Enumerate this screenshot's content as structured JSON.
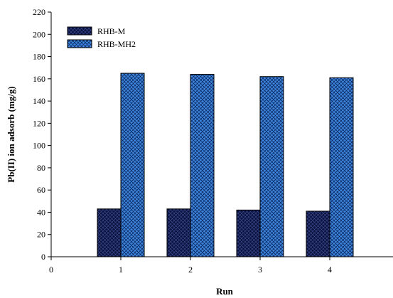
{
  "chart_data": {
    "type": "bar",
    "title": "",
    "xlabel": "Run",
    "ylabel": "Pb(II) ion adsorb (mg/g)",
    "categories": [
      "1",
      "2",
      "3",
      "4"
    ],
    "x_ticks": [
      "0",
      "1",
      "2",
      "3",
      "4"
    ],
    "xlim": [
      0,
      5
    ],
    "ylim": [
      0,
      220
    ],
    "y_ticks": [
      0,
      20,
      40,
      60,
      80,
      100,
      120,
      140,
      160,
      180,
      200,
      220
    ],
    "grid": false,
    "legend_position": "top-left",
    "series": [
      {
        "name": "RHB-M",
        "values": [
          43,
          43,
          42,
          41
        ],
        "color": "#0a0f3d",
        "pattern": "cross-hatch"
      },
      {
        "name": "RHB-MH2",
        "values": [
          165,
          164,
          162,
          161
        ],
        "color": "#3a7fd5",
        "pattern": "cross-hatch"
      }
    ]
  }
}
